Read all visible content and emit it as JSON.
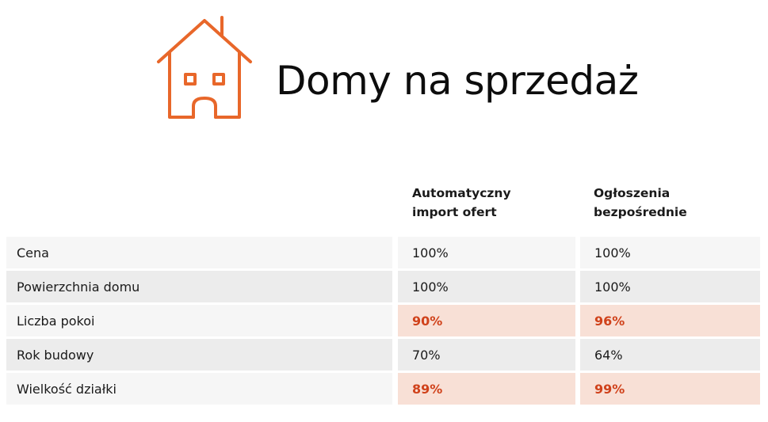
{
  "header": {
    "title": "Domy na sprzedaż",
    "icon": "house-icon",
    "accent_color": "#e8672a"
  },
  "chart_data": {
    "type": "table",
    "title": "Domy na sprzedaż",
    "columns": [
      "Automatyczny import ofert",
      "Ogłoszenia bezpośrednie"
    ],
    "column_header_lines": [
      [
        "Automatyczny",
        "import ofert"
      ],
      [
        "Ogłoszenia",
        "bezpośrednie"
      ]
    ],
    "rows": [
      {
        "label": "Cena",
        "values": [
          "100%",
          "100%"
        ],
        "highlight": false
      },
      {
        "label": "Powierzchnia domu",
        "values": [
          "100%",
          "100%"
        ],
        "highlight": false
      },
      {
        "label": "Liczba pokoi",
        "values": [
          "90%",
          "96%"
        ],
        "highlight": true
      },
      {
        "label": "Rok budowy",
        "values": [
          "70%",
          "64%"
        ],
        "highlight": false
      },
      {
        "label": "Wielkość działki",
        "values": [
          "89%",
          "99%"
        ],
        "highlight": true
      }
    ],
    "highlight_colors": {
      "background": "#f8e0d6",
      "text": "#d0421b"
    }
  }
}
